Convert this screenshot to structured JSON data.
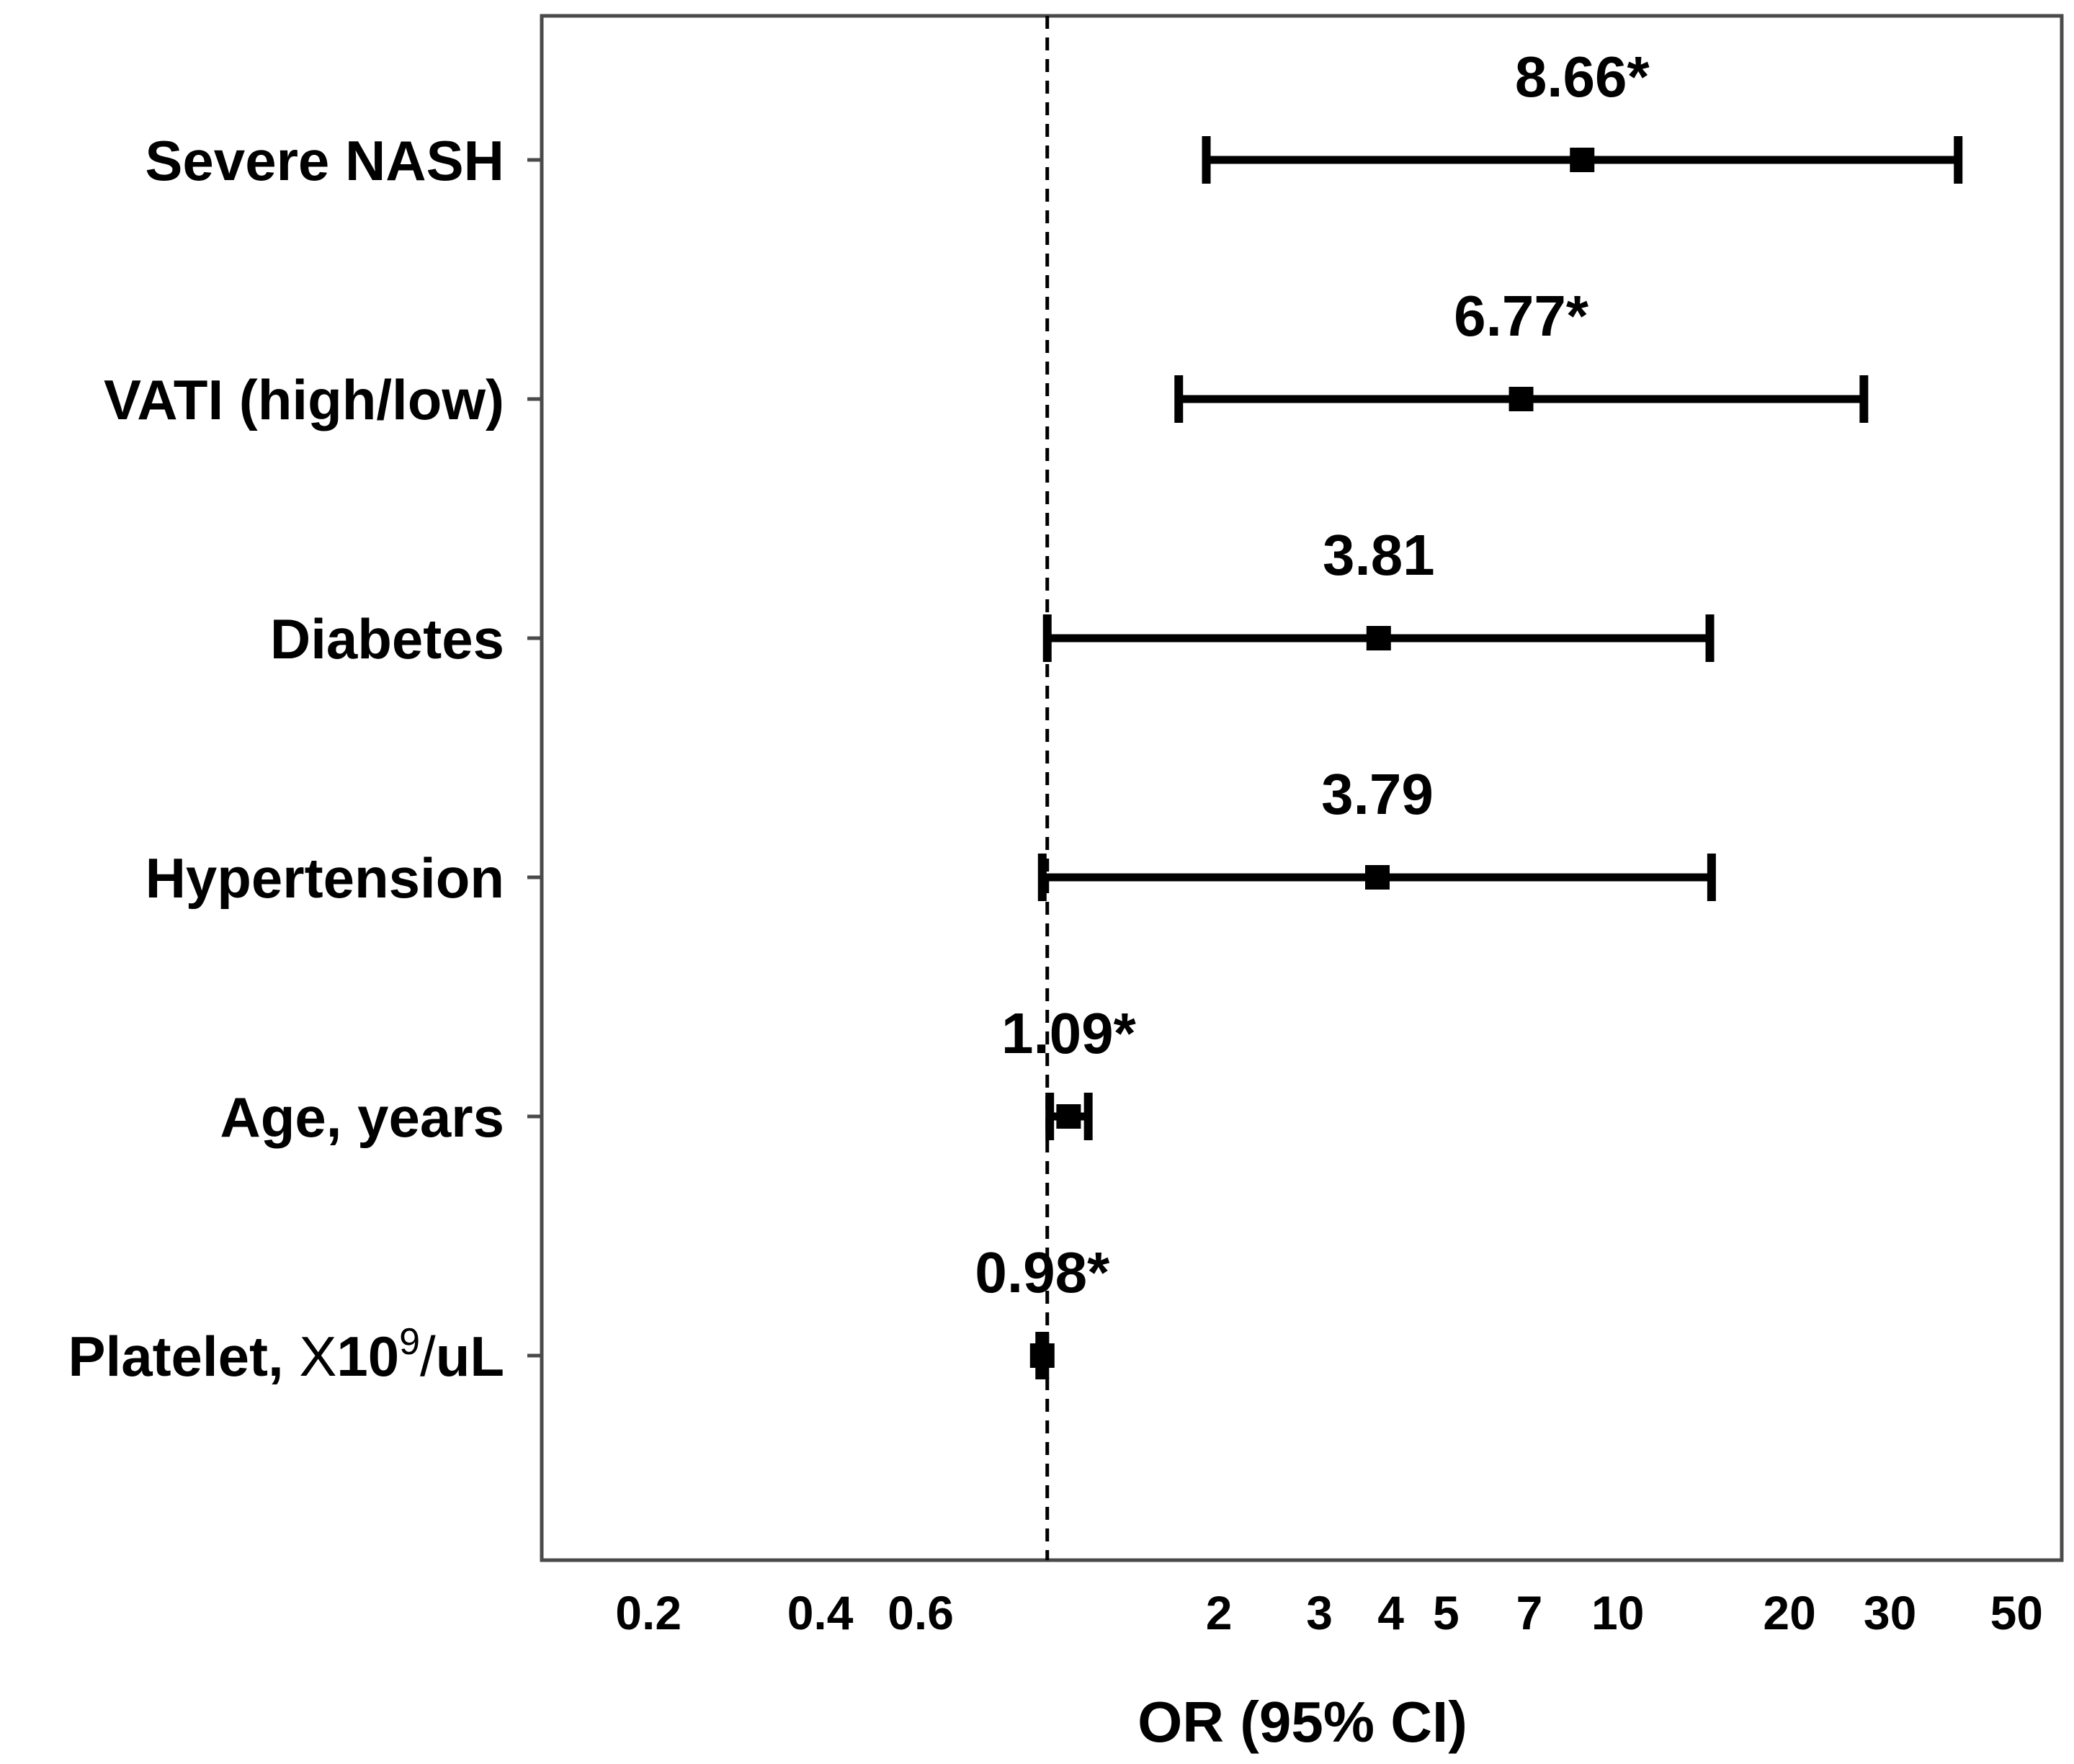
{
  "chart_data": {
    "type": "forest",
    "x_scale": "log",
    "xlabel": "OR (95% CI)",
    "xlim": [
      0.13,
      60
    ],
    "reference_line": 1,
    "x_ticks": [
      {
        "value": 0.2,
        "label": "0.2"
      },
      {
        "value": 0.4,
        "label": "0.4"
      },
      {
        "value": 0.6,
        "label": "0.6"
      },
      {
        "value": 2,
        "label": "2"
      },
      {
        "value": 3,
        "label": "3"
      },
      {
        "value": 4,
        "label": "4"
      },
      {
        "value": 5,
        "label": "5"
      },
      {
        "value": 7,
        "label": "7"
      },
      {
        "value": 10,
        "label": "10"
      },
      {
        "value": 20,
        "label": "20"
      },
      {
        "value": 30,
        "label": "30"
      },
      {
        "value": 50,
        "label": "50"
      }
    ],
    "rows": [
      {
        "label": "Severe NASH",
        "label_suffix": "",
        "or": 8.66,
        "lower": 1.9,
        "upper": 39.5,
        "estimate_label": "8.66*"
      },
      {
        "label": "VATI (high/low)",
        "label_suffix": "",
        "or": 6.77,
        "lower": 1.7,
        "upper": 27.0,
        "estimate_label": "6.77*"
      },
      {
        "label": "Diabetes",
        "label_suffix": "",
        "or": 3.81,
        "lower": 1.0,
        "upper": 14.5,
        "estimate_label": "3.81"
      },
      {
        "label": "Hypertension",
        "label_suffix": "",
        "or": 3.79,
        "lower": 0.98,
        "upper": 14.6,
        "estimate_label": "3.79"
      },
      {
        "label": "Age, years",
        "label_suffix": "",
        "or": 1.09,
        "lower": 1.01,
        "upper": 1.18,
        "estimate_label": "1.09*"
      },
      {
        "label": "Platelet, ",
        "label_suffix": "X10",
        "label_sup": "9",
        "label_tail": "/uL",
        "or": 0.98,
        "lower": 0.97,
        "upper": 0.99,
        "estimate_label": "0.98*"
      }
    ]
  }
}
